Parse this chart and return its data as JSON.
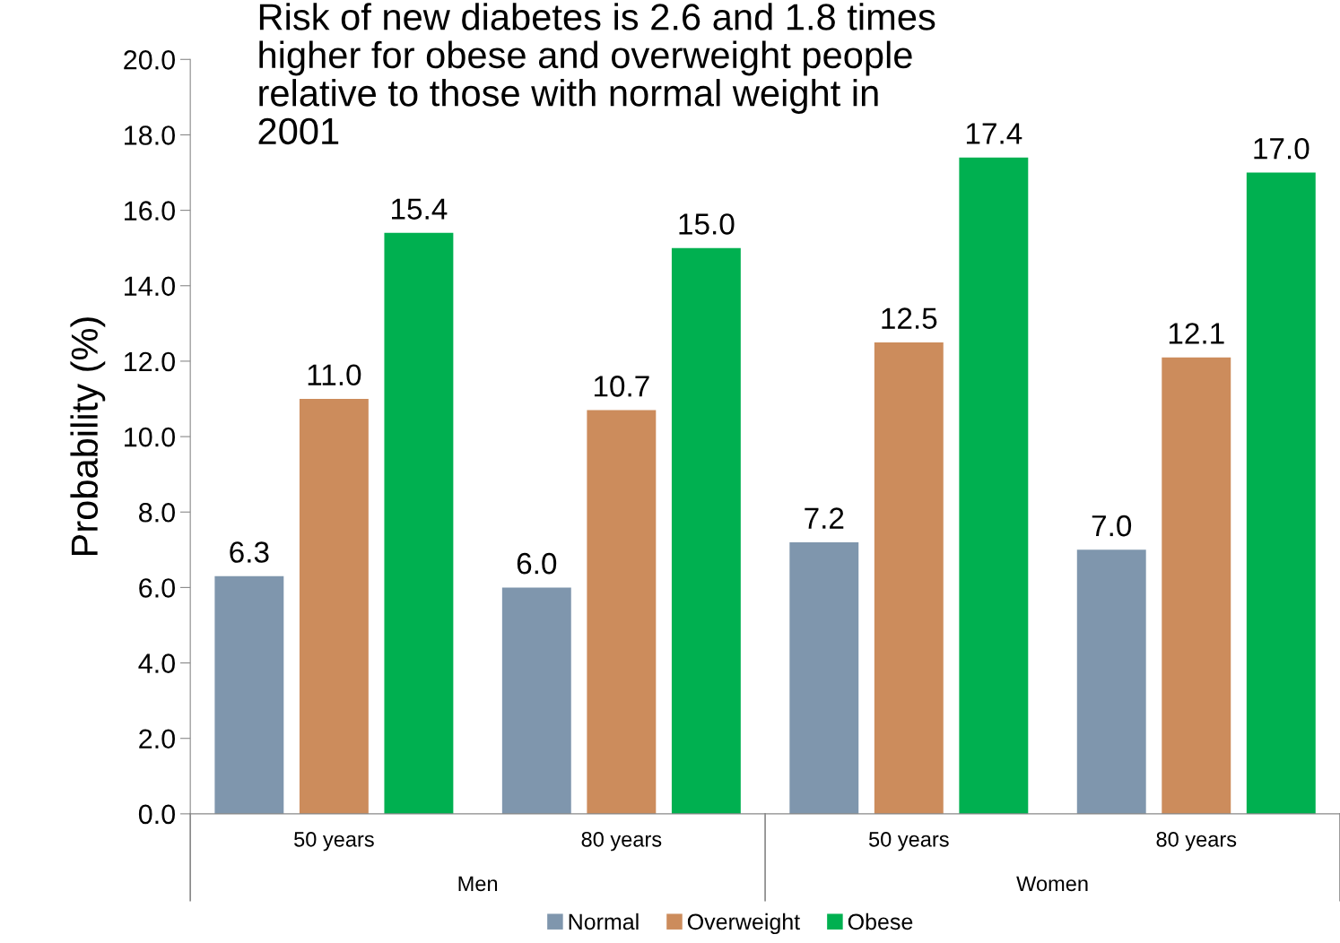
{
  "chart_data": {
    "type": "bar",
    "title": "Risk of new diabetes is 2.6 and 1.8 times higher for obese and overweight people relative to those with normal weight in 2001",
    "ylabel": "Probability (%)",
    "categories": [
      "50 years",
      "80 years",
      "50 years",
      "80 years"
    ],
    "series": [
      {
        "name": "Normal",
        "color": "#7f96ad",
        "values": [
          6.3,
          6.0,
          7.2,
          7.0
        ],
        "value_labels": [
          "6.3",
          "6.0",
          "7.2",
          "7.0"
        ]
      },
      {
        "name": "Overweight",
        "color": "#cc8c5c",
        "values": [
          11.0,
          10.7,
          12.5,
          12.1
        ],
        "value_labels": [
          "11.0",
          "10.7",
          "12.5",
          "12.1"
        ]
      },
      {
        "name": "Obese",
        "color": "#00b050",
        "values": [
          15.4,
          15.0,
          17.4,
          17.0
        ],
        "value_labels": [
          "15.4",
          "15.0",
          "17.4",
          "17.0"
        ]
      }
    ],
    "annotations": [
      "Men",
      "Women"
    ],
    "ylim": [
      0,
      20
    ],
    "yticks": [
      {
        "value": 0,
        "label": "0.0"
      },
      {
        "value": 2,
        "label": "2.0"
      },
      {
        "value": 4,
        "label": "4.0"
      },
      {
        "value": 6,
        "label": "6.0"
      },
      {
        "value": 8,
        "label": "8.0"
      },
      {
        "value": 10,
        "label": "10.0"
      },
      {
        "value": 12,
        "label": "12.0"
      },
      {
        "value": 14,
        "label": "14.0"
      },
      {
        "value": 16,
        "label": "16.0"
      },
      {
        "value": 18,
        "label": "18.0"
      },
      {
        "value": 20,
        "label": "20.0"
      }
    ],
    "grid": false,
    "legend": "bottom"
  }
}
